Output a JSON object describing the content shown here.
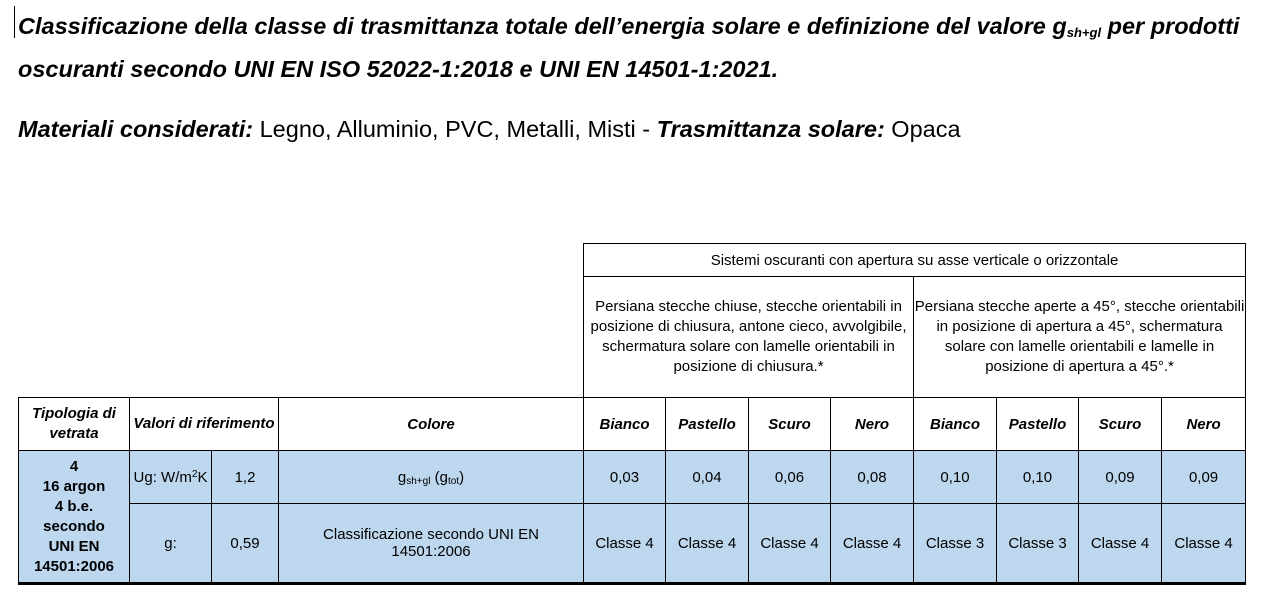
{
  "title": {
    "part1": "Classificazione della classe di trasmittanza totale dell’energia solare e definizione del valore g",
    "sub": "sh+gl",
    "part2": " per prodotti oscuranti secondo UNI EN ISO 52022-1:2018 e UNI EN 14501-1:2021."
  },
  "materials": {
    "label": "Materiali considerati:",
    "value": " Legno, Alluminio, PVC, Metalli, Misti - ",
    "trans_label": "Trasmittanza solare:",
    "trans_value": " Opaca"
  },
  "table": {
    "group_header": "Sistemi oscuranti con apertura su asse verticale o orizzontale",
    "group_closed": "Persiana stecche chiuse, stecche orientabili in posizione di chiusura, antone cieco, avvolgibile, schermatura solare con lamelle orientabili in posizione di chiusura.*",
    "group_open": "Persiana stecche aperte a 45°, stecche orientabili in posizione di apertura a 45°, schermatura solare con lamelle orientabili e lamelle in posizione di apertura a 45°.*",
    "col_tipologia": "Tipologia di vetrata",
    "col_valori": "Valori di riferimento",
    "col_colore": "Colore",
    "colors": [
      "Bianco",
      "Pastello",
      "Scuro",
      "Nero",
      "Bianco",
      "Pastello",
      "Scuro",
      "Nero"
    ],
    "tipologia": [
      "4",
      "16 argon",
      "4 b.e.",
      "secondo",
      "UNI EN",
      "14501:2006"
    ],
    "row1": {
      "ref_label_a": "Ug: W/m",
      "ref_label_sup": "2",
      "ref_label_b": "K",
      "ref_value": "1,2",
      "colore_a": "g",
      "colore_sub1": "sh+gl",
      "colore_b": " (g",
      "colore_sub2": "tot",
      "colore_c": ")",
      "values": [
        "0,03",
        "0,04",
        "0,06",
        "0,08",
        "0,10",
        "0,10",
        "0,09",
        "0,09"
      ]
    },
    "row2": {
      "ref_label": "g:",
      "ref_value": "0,59",
      "colore": "Classificazione secondo UNI EN 14501:2006",
      "values": [
        "Classe 4",
        "Classe 4",
        "Classe 4",
        "Classe 4",
        "Classe 3",
        "Classe 3",
        "Classe 4",
        "Classe 4"
      ]
    }
  }
}
